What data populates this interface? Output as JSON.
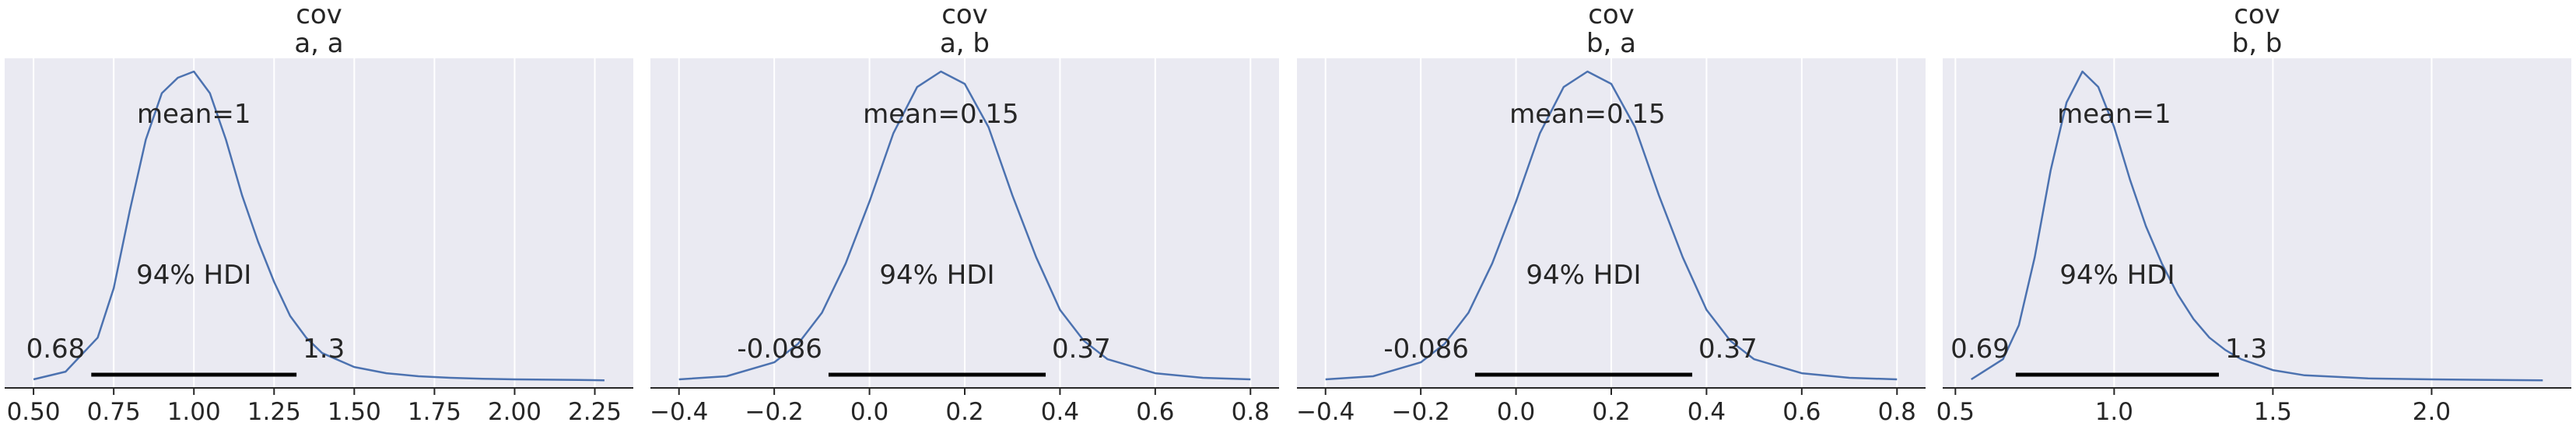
{
  "chart_data": [
    {
      "type": "area",
      "title_line1": "cov",
      "title_line2": "a, a",
      "xlim": [
        0.41,
        2.37
      ],
      "x_ticks": [
        0.5,
        0.75,
        1.0,
        1.25,
        1.5,
        1.75,
        2.0,
        2.25
      ],
      "x_tick_labels": [
        "0.50",
        "0.75",
        "1.00",
        "1.25",
        "1.50",
        "1.75",
        "2.00",
        "2.25"
      ],
      "density": {
        "x": [
          0.5,
          0.6,
          0.7,
          0.75,
          0.8,
          0.85,
          0.9,
          0.95,
          1.0,
          1.05,
          1.1,
          1.15,
          1.2,
          1.25,
          1.3,
          1.35,
          1.4,
          1.5,
          1.6,
          1.7,
          1.8,
          1.9,
          2.0,
          2.1,
          2.2,
          2.28
        ],
        "y": [
          0.005,
          0.03,
          0.14,
          0.3,
          0.55,
          0.78,
          0.93,
          0.98,
          1.0,
          0.93,
          0.78,
          0.6,
          0.45,
          0.32,
          0.21,
          0.14,
          0.09,
          0.045,
          0.025,
          0.015,
          0.01,
          0.007,
          0.005,
          0.004,
          0.003,
          0.002
        ]
      },
      "mean_label": "mean=1",
      "mean_x": 1.0,
      "hdi_label": "94% HDI",
      "hdi": [
        0.68,
        1.32
      ],
      "hdi_low_label": "0.68",
      "hdi_high_label": "1.3"
    },
    {
      "type": "area",
      "title_line1": "cov",
      "title_line2": "a, b",
      "xlim": [
        -0.46,
        0.86
      ],
      "x_ticks": [
        -0.4,
        -0.2,
        0.0,
        0.2,
        0.4,
        0.6,
        0.8
      ],
      "x_tick_labels": [
        "−0.4",
        "−0.2",
        "0.0",
        "0.2",
        "0.4",
        "0.6",
        "0.8"
      ],
      "density": {
        "x": [
          -0.4,
          -0.3,
          -0.2,
          -0.15,
          -0.1,
          -0.05,
          0.0,
          0.05,
          0.1,
          0.15,
          0.2,
          0.25,
          0.3,
          0.35,
          0.4,
          0.45,
          0.5,
          0.6,
          0.7,
          0.8
        ],
        "y": [
          0.005,
          0.015,
          0.06,
          0.12,
          0.22,
          0.38,
          0.58,
          0.8,
          0.95,
          1.0,
          0.96,
          0.82,
          0.6,
          0.4,
          0.23,
          0.13,
          0.07,
          0.025,
          0.01,
          0.005
        ]
      },
      "mean_label": "mean=0.15",
      "mean_x": 0.15,
      "hdi_label": "94% HDI",
      "hdi": [
        -0.086,
        0.37
      ],
      "hdi_low_label": "-0.086",
      "hdi_high_label": "0.37"
    },
    {
      "type": "area",
      "title_line1": "cov",
      "title_line2": "b, a",
      "xlim": [
        -0.46,
        0.86
      ],
      "x_ticks": [
        -0.4,
        -0.2,
        0.0,
        0.2,
        0.4,
        0.6,
        0.8
      ],
      "x_tick_labels": [
        "−0.4",
        "−0.2",
        "0.0",
        "0.2",
        "0.4",
        "0.6",
        "0.8"
      ],
      "density": {
        "x": [
          -0.4,
          -0.3,
          -0.2,
          -0.15,
          -0.1,
          -0.05,
          0.0,
          0.05,
          0.1,
          0.15,
          0.2,
          0.25,
          0.3,
          0.35,
          0.4,
          0.45,
          0.5,
          0.6,
          0.7,
          0.8
        ],
        "y": [
          0.005,
          0.015,
          0.06,
          0.12,
          0.22,
          0.38,
          0.58,
          0.8,
          0.95,
          1.0,
          0.96,
          0.82,
          0.6,
          0.4,
          0.23,
          0.13,
          0.07,
          0.025,
          0.01,
          0.005
        ]
      },
      "mean_label": "mean=0.15",
      "mean_x": 0.15,
      "hdi_label": "94% HDI",
      "hdi": [
        -0.086,
        0.37
      ],
      "hdi_low_label": "-0.086",
      "hdi_high_label": "0.37"
    },
    {
      "type": "area",
      "title_line1": "cov",
      "title_line2": "b, b",
      "xlim": [
        0.46,
        2.44
      ],
      "x_ticks": [
        0.5,
        1.0,
        1.5,
        2.0
      ],
      "x_tick_labels": [
        "0.5",
        "1.0",
        "1.5",
        "2.0"
      ],
      "density": {
        "x": [
          0.55,
          0.65,
          0.7,
          0.75,
          0.8,
          0.85,
          0.9,
          0.95,
          1.0,
          1.05,
          1.1,
          1.15,
          1.2,
          1.25,
          1.3,
          1.35,
          1.4,
          1.5,
          1.6,
          1.8,
          2.0,
          2.2,
          2.35
        ],
        "y": [
          0.005,
          0.07,
          0.18,
          0.4,
          0.68,
          0.9,
          1.0,
          0.95,
          0.82,
          0.65,
          0.5,
          0.38,
          0.28,
          0.2,
          0.14,
          0.1,
          0.07,
          0.035,
          0.018,
          0.008,
          0.005,
          0.003,
          0.002
        ]
      },
      "mean_label": "mean=1",
      "mean_x": 1.0,
      "hdi_label": "94% HDI",
      "hdi": [
        0.69,
        1.33
      ],
      "hdi_low_label": "0.69",
      "hdi_high_label": "1.3"
    }
  ]
}
